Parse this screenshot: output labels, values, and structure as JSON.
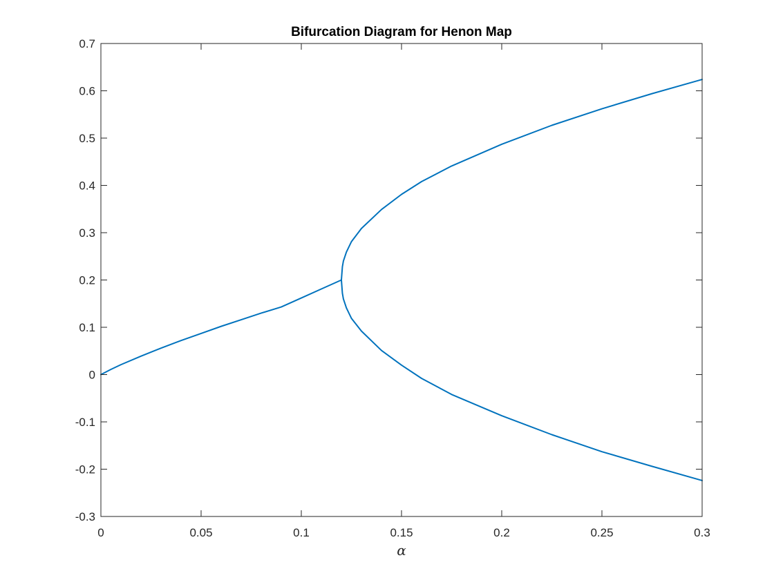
{
  "chart_data": {
    "type": "line",
    "title": "Bifurcation Diagram for Henon Map",
    "xlabel": "α",
    "ylabel": "",
    "xlim": [
      0,
      0.3
    ],
    "ylim": [
      -0.3,
      0.7
    ],
    "xticks": [
      0,
      0.05,
      0.1,
      0.15,
      0.2,
      0.25,
      0.3
    ],
    "xtick_labels": [
      "0",
      "0.05",
      "0.1",
      "0.15",
      "0.2",
      "0.25",
      "0.3"
    ],
    "yticks": [
      -0.3,
      -0.2,
      -0.1,
      0,
      0.1,
      0.2,
      0.3,
      0.4,
      0.5,
      0.6,
      0.7
    ],
    "ytick_labels": [
      "-0.3",
      "-0.2",
      "-0.1",
      "0",
      "0.1",
      "0.2",
      "0.3",
      "0.4",
      "0.5",
      "0.6",
      "0.7"
    ],
    "grid": false,
    "legend": "none",
    "line_color": "#0072BD",
    "series": [
      {
        "x": [
          0,
          0.005,
          0.01,
          0.02,
          0.03,
          0.04,
          0.05,
          0.06,
          0.07,
          0.08,
          0.09,
          0.1,
          0.11,
          0.12
        ],
        "y": [
          0,
          0.011,
          0.021,
          0.039,
          0.056,
          0.072,
          0.087,
          0.102,
          0.116,
          0.13,
          0.143,
          0.162,
          0.181,
          0.2
        ]
      },
      {
        "x": [
          0.12,
          0.1205,
          0.121,
          0.1225,
          0.125,
          0.13,
          0.14,
          0.15,
          0.16,
          0.175,
          0.2,
          0.225,
          0.25,
          0.275,
          0.3
        ],
        "y": [
          0.2,
          0.228,
          0.24,
          0.259,
          0.281,
          0.309,
          0.349,
          0.381,
          0.408,
          0.441,
          0.487,
          0.527,
          0.562,
          0.594,
          0.624
        ]
      },
      {
        "x": [
          0.12,
          0.1205,
          0.121,
          0.1225,
          0.125,
          0.13,
          0.14,
          0.15,
          0.16,
          0.175,
          0.2,
          0.225,
          0.25,
          0.275,
          0.3
        ],
        "y": [
          0.2,
          0.172,
          0.16,
          0.141,
          0.119,
          0.092,
          0.051,
          0.02,
          -0.008,
          -0.042,
          -0.087,
          -0.127,
          -0.163,
          -0.194,
          -0.224
        ]
      }
    ]
  }
}
